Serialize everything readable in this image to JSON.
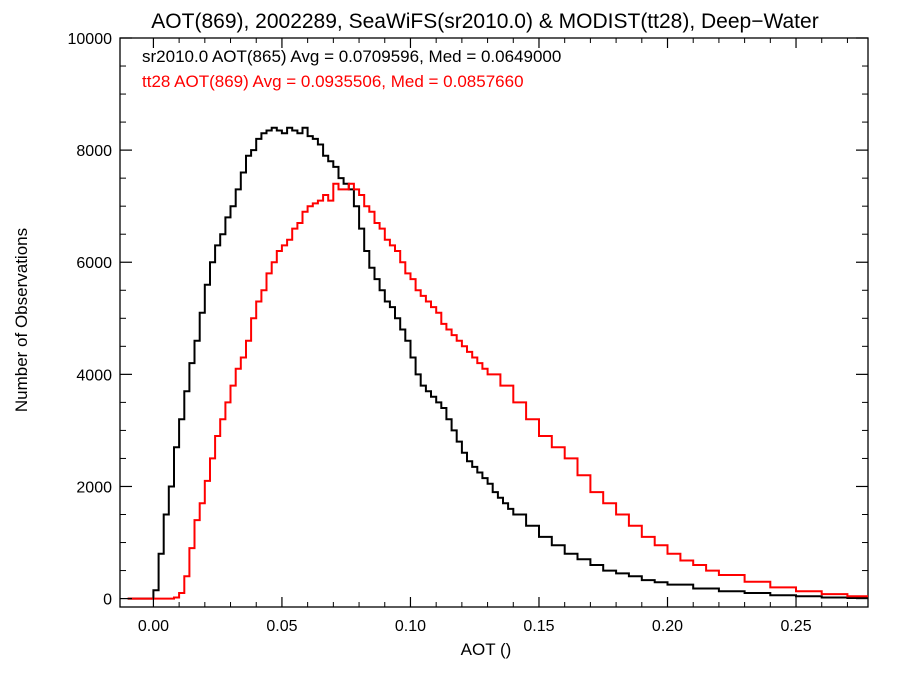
{
  "chart_data": {
    "type": "line",
    "title": "AOT(869), 2002289, SeaWiFS(sr2010.0) & MODIST(tt28), Deep−Water",
    "xlabel": "AOT ()",
    "ylabel": "Number of Observations",
    "xlim": [
      -0.013,
      0.278
    ],
    "ylim": [
      -150,
      10000
    ],
    "xticks": [
      0.0,
      0.05,
      0.1,
      0.15,
      0.2,
      0.25
    ],
    "xtick_labels": [
      "0.00",
      "0.05",
      "0.10",
      "0.15",
      "0.20",
      "0.25"
    ],
    "yticks": [
      0,
      2000,
      4000,
      6000,
      8000,
      10000
    ],
    "ytick_labels": [
      "0",
      "2000",
      "4000",
      "6000",
      "8000",
      "10000"
    ],
    "grid": false,
    "legend_position": "top-left",
    "series": [
      {
        "name": "sr2010.0 AOT(865) Avg = 0.0709596, Med = 0.0649000",
        "color": "#000000",
        "step": "post",
        "x": [
          -0.01,
          0.0,
          0.002,
          0.004,
          0.006,
          0.008,
          0.01,
          0.012,
          0.014,
          0.016,
          0.018,
          0.02,
          0.022,
          0.024,
          0.026,
          0.028,
          0.03,
          0.032,
          0.034,
          0.036,
          0.038,
          0.04,
          0.042,
          0.044,
          0.046,
          0.048,
          0.05,
          0.052,
          0.054,
          0.056,
          0.058,
          0.06,
          0.062,
          0.064,
          0.066,
          0.068,
          0.07,
          0.072,
          0.074,
          0.076,
          0.078,
          0.08,
          0.082,
          0.084,
          0.086,
          0.088,
          0.09,
          0.092,
          0.094,
          0.096,
          0.098,
          0.1,
          0.102,
          0.104,
          0.106,
          0.108,
          0.11,
          0.112,
          0.114,
          0.116,
          0.118,
          0.12,
          0.122,
          0.124,
          0.126,
          0.128,
          0.13,
          0.132,
          0.134,
          0.136,
          0.138,
          0.14,
          0.145,
          0.15,
          0.155,
          0.16,
          0.165,
          0.17,
          0.175,
          0.18,
          0.185,
          0.19,
          0.195,
          0.2,
          0.21,
          0.22,
          0.23,
          0.24,
          0.25,
          0.26,
          0.27
        ],
        "y": [
          0,
          150,
          800,
          1500,
          2000,
          2700,
          3200,
          3700,
          4200,
          4600,
          5100,
          5600,
          6000,
          6300,
          6500,
          6800,
          7000,
          7300,
          7600,
          7900,
          8000,
          8200,
          8300,
          8350,
          8400,
          8350,
          8300,
          8400,
          8350,
          8300,
          8400,
          8250,
          8200,
          8100,
          7900,
          7800,
          7700,
          7500,
          7400,
          7300,
          7000,
          6600,
          6200,
          5900,
          5700,
          5500,
          5300,
          5200,
          5000,
          4800,
          4600,
          4300,
          4000,
          3800,
          3700,
          3600,
          3500,
          3400,
          3200,
          3000,
          2800,
          2600,
          2450,
          2350,
          2250,
          2150,
          2050,
          1900,
          1800,
          1700,
          1600,
          1500,
          1300,
          1100,
          950,
          800,
          700,
          600,
          500,
          450,
          400,
          330,
          290,
          250,
          180,
          130,
          100,
          60,
          40,
          20,
          10
        ]
      },
      {
        "name": "tt28 AOT(869) Avg = 0.0935506, Med = 0.0857660",
        "color": "#ff0000",
        "step": "post",
        "x": [
          -0.01,
          0.0,
          0.004,
          0.008,
          0.01,
          0.012,
          0.014,
          0.016,
          0.018,
          0.02,
          0.022,
          0.024,
          0.026,
          0.028,
          0.03,
          0.032,
          0.034,
          0.036,
          0.038,
          0.04,
          0.042,
          0.044,
          0.046,
          0.048,
          0.05,
          0.052,
          0.054,
          0.056,
          0.058,
          0.06,
          0.062,
          0.064,
          0.066,
          0.068,
          0.07,
          0.072,
          0.074,
          0.076,
          0.078,
          0.08,
          0.082,
          0.084,
          0.086,
          0.088,
          0.09,
          0.092,
          0.094,
          0.096,
          0.098,
          0.1,
          0.102,
          0.104,
          0.106,
          0.108,
          0.11,
          0.112,
          0.114,
          0.116,
          0.118,
          0.12,
          0.122,
          0.124,
          0.126,
          0.128,
          0.13,
          0.135,
          0.14,
          0.145,
          0.15,
          0.155,
          0.16,
          0.165,
          0.17,
          0.175,
          0.18,
          0.185,
          0.19,
          0.195,
          0.2,
          0.205,
          0.21,
          0.215,
          0.22,
          0.23,
          0.24,
          0.25,
          0.26,
          0.27
        ],
        "y": [
          0,
          0,
          0,
          20,
          100,
          400,
          900,
          1400,
          1700,
          2100,
          2500,
          2900,
          3200,
          3500,
          3800,
          4100,
          4300,
          4600,
          5000,
          5300,
          5500,
          5800,
          6000,
          6200,
          6300,
          6400,
          6600,
          6700,
          6900,
          7000,
          7050,
          7100,
          7200,
          7100,
          7400,
          7300,
          7300,
          7400,
          7300,
          7200,
          7000,
          6900,
          6700,
          6600,
          6400,
          6300,
          6200,
          6000,
          5800,
          5700,
          5500,
          5400,
          5300,
          5200,
          5100,
          4900,
          4800,
          4700,
          4600,
          4500,
          4400,
          4300,
          4200,
          4100,
          4000,
          3800,
          3500,
          3200,
          2900,
          2700,
          2500,
          2200,
          1900,
          1700,
          1500,
          1300,
          1100,
          950,
          800,
          680,
          600,
          500,
          420,
          300,
          200,
          130,
          80,
          40
        ]
      }
    ]
  }
}
